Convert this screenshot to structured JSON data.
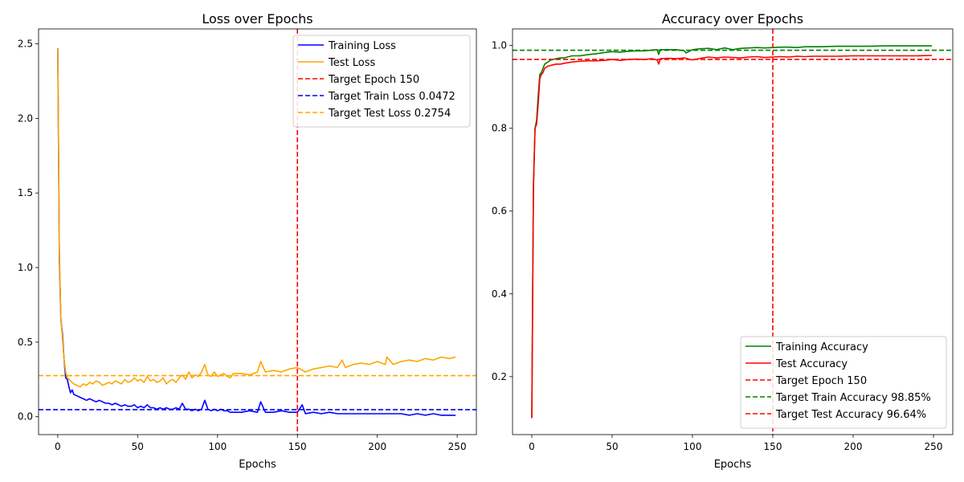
{
  "colors": {
    "blue": "#0000ff",
    "orange": "#ffa500",
    "red": "#ff0000",
    "green": "#008000"
  },
  "chart_data": [
    {
      "type": "line",
      "title": "Loss over Epochs",
      "xlabel": "Epochs",
      "ylabel": "",
      "xlim": [
        -12,
        262
      ],
      "ylim": [
        -0.12,
        2.6
      ],
      "xticks": [
        0,
        50,
        100,
        150,
        200,
        250
      ],
      "yticks": [
        0.0,
        0.5,
        1.0,
        1.5,
        2.0,
        2.5
      ],
      "legend_position": "top-right",
      "grid": false,
      "series": [
        {
          "name": "Training Loss",
          "color": "#0000ff",
          "x": [
            0,
            1,
            2,
            3,
            4,
            5,
            6,
            7,
            8,
            9,
            10,
            12,
            14,
            16,
            18,
            20,
            22,
            24,
            26,
            28,
            30,
            32,
            34,
            36,
            38,
            40,
            42,
            44,
            46,
            48,
            50,
            52,
            54,
            56,
            58,
            60,
            62,
            64,
            66,
            68,
            70,
            72,
            74,
            76,
            78,
            80,
            82,
            84,
            86,
            88,
            90,
            92,
            94,
            96,
            98,
            100,
            102,
            104,
            106,
            108,
            110,
            115,
            120,
            125,
            127,
            130,
            135,
            140,
            145,
            150,
            153,
            155,
            160,
            165,
            170,
            175,
            180,
            185,
            190,
            195,
            200,
            205,
            210,
            215,
            220,
            225,
            230,
            235,
            240,
            245,
            249
          ],
          "y": [
            2.47,
            1.05,
            0.65,
            0.55,
            0.38,
            0.26,
            0.25,
            0.2,
            0.16,
            0.18,
            0.15,
            0.14,
            0.13,
            0.12,
            0.11,
            0.12,
            0.11,
            0.1,
            0.11,
            0.1,
            0.09,
            0.09,
            0.08,
            0.09,
            0.08,
            0.07,
            0.08,
            0.07,
            0.07,
            0.08,
            0.06,
            0.07,
            0.06,
            0.08,
            0.06,
            0.06,
            0.05,
            0.06,
            0.05,
            0.06,
            0.05,
            0.05,
            0.06,
            0.05,
            0.09,
            0.05,
            0.05,
            0.04,
            0.05,
            0.04,
            0.05,
            0.11,
            0.05,
            0.04,
            0.05,
            0.04,
            0.05,
            0.04,
            0.04,
            0.03,
            0.03,
            0.03,
            0.04,
            0.03,
            0.1,
            0.03,
            0.03,
            0.04,
            0.03,
            0.03,
            0.08,
            0.02,
            0.03,
            0.02,
            0.03,
            0.02,
            0.02,
            0.02,
            0.02,
            0.02,
            0.02,
            0.02,
            0.02,
            0.02,
            0.01,
            0.02,
            0.01,
            0.02,
            0.01,
            0.01,
            0.01
          ]
        },
        {
          "name": "Test Loss",
          "color": "#ffa500",
          "x": [
            0,
            1,
            2,
            3,
            4,
            5,
            6,
            7,
            8,
            10,
            12,
            14,
            16,
            18,
            20,
            22,
            24,
            26,
            28,
            30,
            32,
            34,
            36,
            38,
            40,
            42,
            44,
            46,
            48,
            50,
            52,
            54,
            56,
            58,
            60,
            62,
            64,
            66,
            68,
            70,
            72,
            74,
            76,
            78,
            80,
            82,
            84,
            86,
            88,
            90,
            92,
            94,
            96,
            98,
            100,
            102,
            104,
            106,
            108,
            110,
            115,
            120,
            125,
            127,
            130,
            135,
            140,
            145,
            150,
            155,
            160,
            165,
            170,
            175,
            178,
            180,
            185,
            190,
            195,
            200,
            205,
            206,
            210,
            215,
            220,
            225,
            230,
            235,
            240,
            245,
            249
          ],
          "y": [
            2.47,
            1.1,
            0.66,
            0.52,
            0.38,
            0.3,
            0.26,
            0.25,
            0.24,
            0.22,
            0.21,
            0.2,
            0.22,
            0.21,
            0.23,
            0.22,
            0.24,
            0.23,
            0.21,
            0.22,
            0.23,
            0.22,
            0.24,
            0.23,
            0.22,
            0.25,
            0.23,
            0.24,
            0.26,
            0.24,
            0.25,
            0.23,
            0.27,
            0.24,
            0.25,
            0.23,
            0.24,
            0.26,
            0.22,
            0.24,
            0.25,
            0.23,
            0.26,
            0.28,
            0.25,
            0.3,
            0.26,
            0.28,
            0.27,
            0.3,
            0.35,
            0.28,
            0.27,
            0.3,
            0.27,
            0.28,
            0.29,
            0.27,
            0.26,
            0.29,
            0.29,
            0.28,
            0.3,
            0.37,
            0.3,
            0.31,
            0.3,
            0.32,
            0.33,
            0.3,
            0.32,
            0.33,
            0.34,
            0.33,
            0.38,
            0.33,
            0.35,
            0.36,
            0.35,
            0.37,
            0.35,
            0.4,
            0.35,
            0.37,
            0.38,
            0.37,
            0.39,
            0.38,
            0.4,
            0.39,
            0.4
          ]
        },
        {
          "name": "Target Epoch 150",
          "color": "#ff0000",
          "kind": "vline",
          "value": 150
        },
        {
          "name": "Target Train Loss 0.0472",
          "color": "#0000ff",
          "kind": "hline",
          "value": 0.0472
        },
        {
          "name": "Target Test Loss 0.2754",
          "color": "#ffa500",
          "kind": "hline",
          "value": 0.2754
        }
      ]
    },
    {
      "type": "line",
      "title": "Accuracy over Epochs",
      "xlabel": "Epochs",
      "ylabel": "",
      "xlim": [
        -12,
        262
      ],
      "ylim": [
        0.06,
        1.04
      ],
      "xticks": [
        0,
        50,
        100,
        150,
        200,
        250
      ],
      "yticks": [
        0.2,
        0.4,
        0.6,
        0.8,
        1.0
      ],
      "legend_position": "bottom-right",
      "grid": false,
      "series": [
        {
          "name": "Training Accuracy",
          "color": "#008000",
          "x": [
            0,
            1,
            2,
            3,
            4,
            5,
            6,
            7,
            8,
            10,
            12,
            15,
            18,
            20,
            25,
            30,
            35,
            40,
            45,
            50,
            55,
            60,
            65,
            70,
            75,
            78,
            79,
            80,
            85,
            90,
            95,
            96,
            100,
            105,
            110,
            115,
            120,
            125,
            130,
            135,
            140,
            145,
            150,
            155,
            160,
            165,
            170,
            175,
            180,
            190,
            200,
            210,
            220,
            230,
            240,
            249
          ],
          "y": [
            0.1,
            0.66,
            0.8,
            0.82,
            0.88,
            0.93,
            0.935,
            0.945,
            0.955,
            0.96,
            0.965,
            0.968,
            0.97,
            0.97,
            0.975,
            0.975,
            0.978,
            0.98,
            0.983,
            0.985,
            0.984,
            0.986,
            0.987,
            0.987,
            0.989,
            0.99,
            0.978,
            0.99,
            0.99,
            0.99,
            0.987,
            0.982,
            0.99,
            0.992,
            0.993,
            0.99,
            0.994,
            0.99,
            0.993,
            0.994,
            0.995,
            0.994,
            0.995,
            0.996,
            0.996,
            0.995,
            0.997,
            0.997,
            0.997,
            0.998,
            0.998,
            0.998,
            0.999,
            0.999,
            0.999,
            0.999
          ]
        },
        {
          "name": "Test Accuracy",
          "color": "#ff0000",
          "x": [
            0,
            1,
            2,
            3,
            4,
            5,
            6,
            7,
            8,
            10,
            12,
            15,
            18,
            20,
            25,
            30,
            35,
            40,
            45,
            50,
            55,
            60,
            65,
            70,
            75,
            78,
            79,
            80,
            85,
            90,
            95,
            100,
            105,
            110,
            115,
            120,
            125,
            130,
            135,
            140,
            145,
            150,
            155,
            160,
            165,
            170,
            175,
            180,
            190,
            200,
            210,
            220,
            230,
            240,
            249
          ],
          "y": [
            0.1,
            0.65,
            0.8,
            0.81,
            0.86,
            0.92,
            0.93,
            0.935,
            0.945,
            0.95,
            0.952,
            0.955,
            0.955,
            0.957,
            0.96,
            0.962,
            0.963,
            0.963,
            0.964,
            0.966,
            0.964,
            0.966,
            0.967,
            0.966,
            0.968,
            0.965,
            0.955,
            0.968,
            0.969,
            0.968,
            0.97,
            0.965,
            0.969,
            0.972,
            0.97,
            0.972,
            0.971,
            0.97,
            0.972,
            0.973,
            0.971,
            0.972,
            0.973,
            0.972,
            0.974,
            0.973,
            0.974,
            0.974,
            0.974,
            0.975,
            0.975,
            0.975,
            0.975,
            0.975,
            0.976
          ]
        },
        {
          "name": "Target Epoch 150",
          "color": "#ff0000",
          "kind": "vline",
          "value": 150
        },
        {
          "name": "Target Train Accuracy 98.85%",
          "color": "#008000",
          "kind": "hline",
          "value": 0.9885
        },
        {
          "name": "Target Test Accuracy 96.64%",
          "color": "#ff0000",
          "kind": "hline",
          "value": 0.9664
        }
      ]
    }
  ]
}
